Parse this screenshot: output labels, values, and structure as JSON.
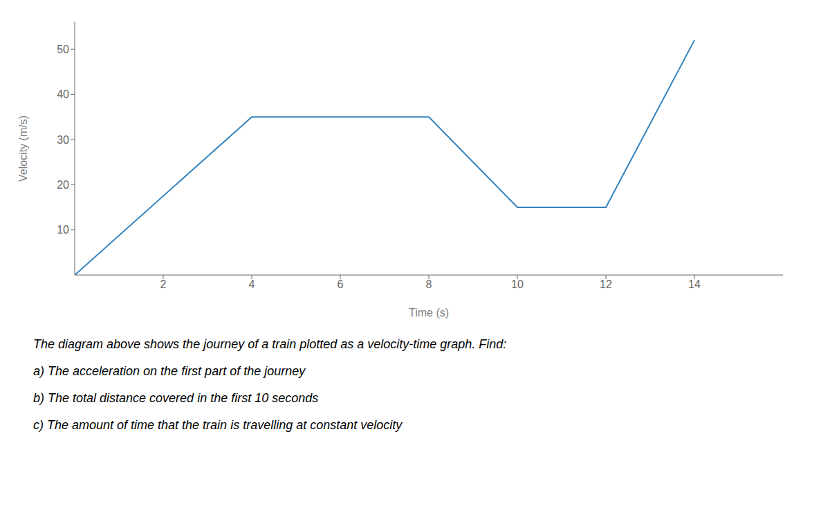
{
  "chart_data": {
    "type": "line",
    "x": [
      0,
      4,
      8,
      10,
      12,
      14
    ],
    "values": [
      0,
      35,
      35,
      15,
      15,
      52
    ],
    "xlabel": "Time (s)",
    "ylabel": "Velocity (m/s)",
    "xlim": [
      0,
      16.0
    ],
    "ylim": [
      0,
      56
    ],
    "xticks": [
      2,
      4,
      6,
      8,
      10,
      12,
      14
    ],
    "yticks": [
      10,
      20,
      30,
      40,
      50
    ],
    "grid": false,
    "annotations": [
      "The diagram above shows the journey of a train plotted as a velocity-time graph. Find:",
      "a) The acceleration on the first part of the journey",
      "b) The total distance covered in the first 10 seconds",
      "c) The amount of time that the train is travelling at constant velocity"
    ]
  }
}
